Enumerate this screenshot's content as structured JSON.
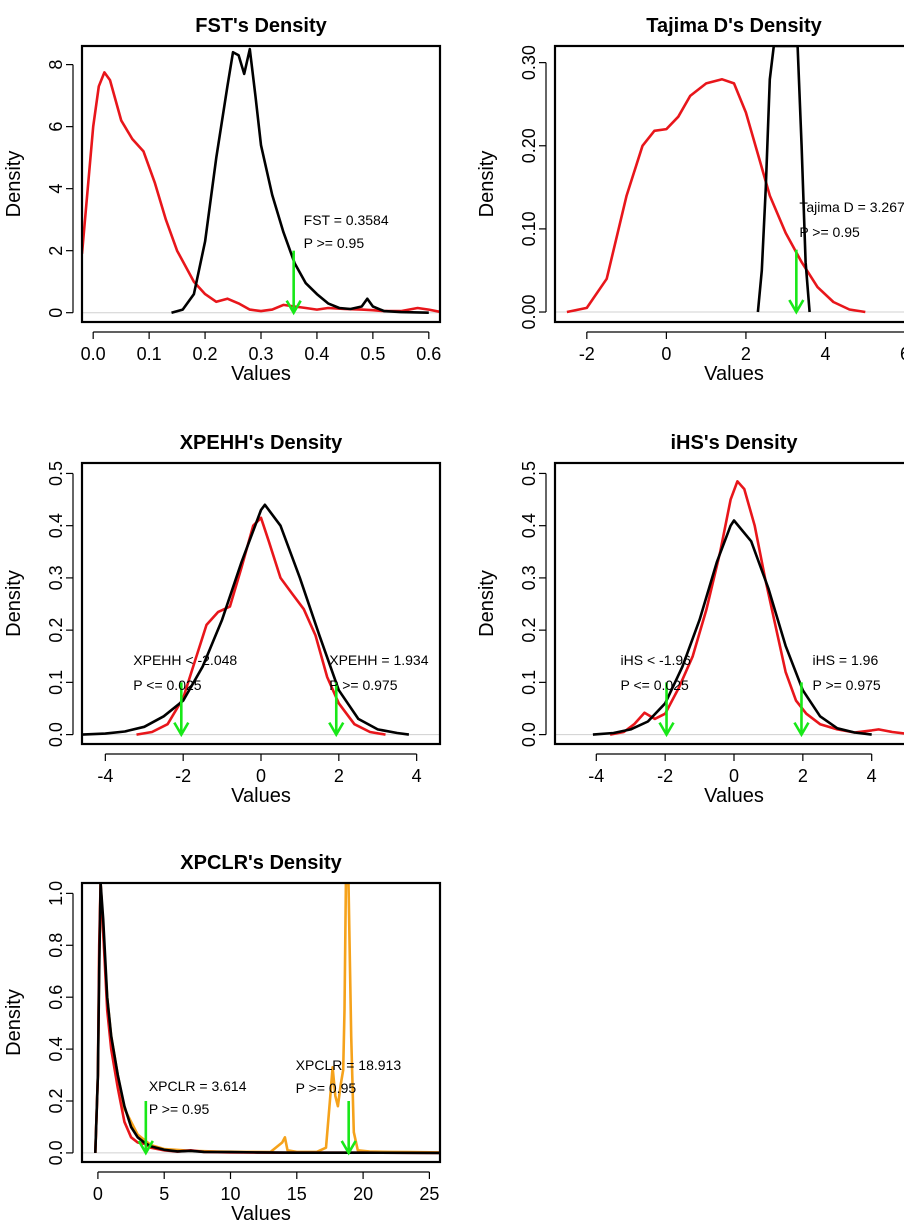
{
  "colors": {
    "red": "#e8161b",
    "black": "#000000",
    "green": "#18e818",
    "orange": "#f5a21b",
    "baseline": "#d0d0d0"
  },
  "chart_data": [
    {
      "id": "fst",
      "type": "line",
      "title": "FST's Density",
      "xlabel": "Values",
      "ylabel": "Density",
      "xlim": [
        -0.02,
        0.62
      ],
      "ylim": [
        -0.3,
        8.6
      ],
      "xticks": [
        0.0,
        0.1,
        0.2,
        0.3,
        0.4,
        0.5,
        0.6
      ],
      "xtick_labels": [
        "0.0",
        "0.1",
        "0.2",
        "0.3",
        "0.4",
        "0.5",
        "0.6"
      ],
      "yticks": [
        0,
        2,
        4,
        6,
        8
      ],
      "ytick_labels": [
        "0",
        "2",
        "4",
        "6",
        "8"
      ],
      "series": [
        {
          "color": "red",
          "x": [
            -0.02,
            0.0,
            0.01,
            0.02,
            0.03,
            0.05,
            0.07,
            0.09,
            0.11,
            0.13,
            0.15,
            0.18,
            0.2,
            0.22,
            0.24,
            0.26,
            0.28,
            0.3,
            0.32,
            0.34,
            0.36,
            0.38,
            0.4,
            0.42,
            0.45,
            0.48,
            0.5,
            0.52,
            0.55,
            0.58,
            0.6,
            0.62
          ],
          "y": [
            1.9,
            6.0,
            7.3,
            7.75,
            7.5,
            6.2,
            5.6,
            5.2,
            4.2,
            3.0,
            2.0,
            1.0,
            0.6,
            0.35,
            0.45,
            0.3,
            0.1,
            0.05,
            0.1,
            0.25,
            0.2,
            0.15,
            0.1,
            0.15,
            0.12,
            0.1,
            0.08,
            0.05,
            0.05,
            0.15,
            0.1,
            0.03
          ]
        },
        {
          "color": "black",
          "x": [
            0.14,
            0.16,
            0.18,
            0.2,
            0.22,
            0.24,
            0.25,
            0.26,
            0.27,
            0.28,
            0.29,
            0.3,
            0.32,
            0.34,
            0.36,
            0.38,
            0.4,
            0.42,
            0.44,
            0.46,
            0.48,
            0.49,
            0.5,
            0.52,
            0.55,
            0.58,
            0.6
          ],
          "y": [
            0.0,
            0.1,
            0.6,
            2.3,
            5.0,
            7.3,
            8.4,
            8.3,
            7.7,
            8.5,
            7.0,
            5.4,
            3.8,
            2.6,
            1.6,
            0.95,
            0.6,
            0.3,
            0.15,
            0.12,
            0.2,
            0.45,
            0.2,
            0.05,
            0.02,
            0.01,
            0.0
          ]
        }
      ],
      "arrows": [
        {
          "x": 0.3584,
          "from": 2.0,
          "to": 0.0
        }
      ],
      "annotations": [
        {
          "x": 0.3584,
          "lines": [
            "FST = 0.3584",
            "P >= 0.95"
          ]
        }
      ]
    },
    {
      "id": "tajima",
      "type": "line",
      "title": "Tajima D's Density",
      "xlabel": "Values",
      "ylabel": "Density",
      "xlim": [
        -2.8,
        6.2
      ],
      "ylim": [
        -0.012,
        0.32
      ],
      "xticks": [
        -2,
        0,
        2,
        4,
        6
      ],
      "xtick_labels": [
        "-2",
        "0",
        "2",
        "4",
        "6"
      ],
      "yticks": [
        0.0,
        0.1,
        0.2,
        0.3
      ],
      "ytick_labels": [
        "0.00",
        "0.10",
        "0.20",
        "0.30"
      ],
      "series": [
        {
          "color": "red",
          "x": [
            -2.5,
            -2.0,
            -1.5,
            -1.0,
            -0.6,
            -0.3,
            0.0,
            0.3,
            0.6,
            1.0,
            1.4,
            1.7,
            2.0,
            2.3,
            2.6,
            3.0,
            3.4,
            3.8,
            4.2,
            4.6,
            5.0
          ],
          "y": [
            0.0,
            0.005,
            0.04,
            0.14,
            0.2,
            0.218,
            0.22,
            0.235,
            0.26,
            0.275,
            0.28,
            0.275,
            0.24,
            0.19,
            0.14,
            0.095,
            0.06,
            0.03,
            0.012,
            0.003,
            0.0
          ]
        },
        {
          "color": "black",
          "x": [
            2.3,
            2.4,
            2.5,
            2.6,
            2.7,
            2.9,
            3.1,
            3.3,
            3.4,
            3.5,
            3.6
          ],
          "y": [
            0.0,
            0.05,
            0.15,
            0.28,
            0.32,
            0.32,
            0.32,
            0.32,
            0.2,
            0.06,
            0.0
          ]
        }
      ],
      "arrows": [
        {
          "x": 3.267,
          "from": 0.075,
          "to": 0.0
        }
      ],
      "annotations": [
        {
          "x": 3.267,
          "lines": [
            "Tajima D = 3.267",
            "P >= 0.95"
          ]
        }
      ]
    },
    {
      "id": "xpehh",
      "type": "line",
      "title": "XPEHH's Density",
      "xlabel": "Values",
      "ylabel": "Density",
      "xlim": [
        -4.6,
        4.6
      ],
      "ylim": [
        -0.018,
        0.52
      ],
      "xticks": [
        -4,
        -2,
        0,
        2,
        4
      ],
      "xtick_labels": [
        "-4",
        "-2",
        "0",
        "2",
        "4"
      ],
      "yticks": [
        0.0,
        0.1,
        0.2,
        0.3,
        0.4,
        0.5
      ],
      "ytick_labels": [
        "0.0",
        "0.1",
        "0.2",
        "0.3",
        "0.4",
        "0.5"
      ],
      "series": [
        {
          "color": "red",
          "x": [
            -3.2,
            -2.8,
            -2.4,
            -2.0,
            -1.7,
            -1.4,
            -1.1,
            -0.8,
            -0.5,
            -0.2,
            0.0,
            0.2,
            0.5,
            0.8,
            1.1,
            1.4,
            1.7,
            2.0,
            2.4,
            2.8,
            3.2
          ],
          "y": [
            0.0,
            0.005,
            0.02,
            0.07,
            0.14,
            0.21,
            0.235,
            0.245,
            0.32,
            0.4,
            0.415,
            0.37,
            0.3,
            0.27,
            0.24,
            0.19,
            0.11,
            0.06,
            0.02,
            0.005,
            0.0
          ]
        },
        {
          "color": "black",
          "x": [
            -4.6,
            -4.0,
            -3.5,
            -3.0,
            -2.5,
            -2.0,
            -1.5,
            -1.0,
            -0.5,
            0.0,
            0.1,
            0.5,
            1.0,
            1.5,
            2.0,
            2.5,
            3.0,
            3.5,
            3.8
          ],
          "y": [
            0.0,
            0.002,
            0.006,
            0.015,
            0.035,
            0.065,
            0.13,
            0.22,
            0.33,
            0.43,
            0.44,
            0.4,
            0.3,
            0.19,
            0.085,
            0.03,
            0.01,
            0.003,
            0.0
          ]
        }
      ],
      "arrows": [
        {
          "x": -2.048,
          "from": 0.1,
          "to": 0.0
        },
        {
          "x": 1.934,
          "from": 0.1,
          "to": 0.0
        }
      ],
      "annotations": [
        {
          "x": -2.048,
          "lines": [
            "XPEHH < -2.048",
            "P <= 0.025"
          ]
        },
        {
          "x": 1.934,
          "lines": [
            "XPEHH = 1.934",
            "P >= 0.975"
          ]
        }
      ]
    },
    {
      "id": "ihs",
      "type": "line",
      "title": "iHS's Density",
      "xlabel": "Values",
      "ylabel": "Density",
      "xlim": [
        -5.2,
        5.2
      ],
      "ylim": [
        -0.018,
        0.52
      ],
      "xticks": [
        -4,
        -2,
        0,
        2,
        4
      ],
      "xtick_labels": [
        "-4",
        "-2",
        "0",
        "2",
        "4"
      ],
      "yticks": [
        0.0,
        0.1,
        0.2,
        0.3,
        0.4,
        0.5
      ],
      "ytick_labels": [
        "0.0",
        "0.1",
        "0.2",
        "0.3",
        "0.4",
        "0.5"
      ],
      "series": [
        {
          "color": "red",
          "x": [
            -3.6,
            -3.2,
            -2.9,
            -2.6,
            -2.3,
            -2.0,
            -1.6,
            -1.2,
            -0.8,
            -0.4,
            -0.1,
            0.1,
            0.3,
            0.6,
            0.9,
            1.2,
            1.5,
            1.8,
            2.1,
            2.5,
            3.0,
            3.5,
            4.0,
            4.2,
            4.6,
            5.2
          ],
          "y": [
            0.0,
            0.005,
            0.02,
            0.042,
            0.03,
            0.04,
            0.09,
            0.15,
            0.24,
            0.35,
            0.45,
            0.485,
            0.47,
            0.4,
            0.3,
            0.21,
            0.12,
            0.065,
            0.04,
            0.02,
            0.01,
            0.004,
            0.008,
            0.01,
            0.005,
            0.0
          ]
        },
        {
          "color": "black",
          "x": [
            -4.1,
            -3.5,
            -3.0,
            -2.5,
            -2.0,
            -1.5,
            -1.0,
            -0.5,
            -0.1,
            0.0,
            0.5,
            1.0,
            1.5,
            2.0,
            2.5,
            3.0,
            3.5,
            4.0
          ],
          "y": [
            0.0,
            0.003,
            0.01,
            0.025,
            0.06,
            0.13,
            0.22,
            0.33,
            0.4,
            0.41,
            0.37,
            0.28,
            0.17,
            0.085,
            0.035,
            0.012,
            0.004,
            0.0
          ]
        }
      ],
      "arrows": [
        {
          "x": -1.96,
          "from": 0.1,
          "to": 0.0
        },
        {
          "x": 1.96,
          "from": 0.1,
          "to": 0.0
        }
      ],
      "annotations": [
        {
          "x": -1.96,
          "lines": [
            "iHS < -1.96",
            "P <= 0.025"
          ]
        },
        {
          "x": 1.96,
          "lines": [
            "iHS = 1.96",
            "P >= 0.975"
          ]
        }
      ]
    },
    {
      "id": "xpclr",
      "type": "line",
      "title": "XPCLR's Density",
      "xlabel": "Values",
      "ylabel": "Density",
      "xlim": [
        -1.2,
        25.8
      ],
      "ylim": [
        -0.035,
        1.04
      ],
      "xticks": [
        0,
        5,
        10,
        15,
        20,
        25
      ],
      "xtick_labels": [
        "0",
        "5",
        "10",
        "15",
        "20",
        "25"
      ],
      "yticks": [
        0.0,
        0.2,
        0.4,
        0.6,
        0.8,
        1.0
      ],
      "ytick_labels": [
        "0.0",
        "0.2",
        "0.4",
        "0.6",
        "0.8",
        "1.0"
      ],
      "series": [
        {
          "color": "orange",
          "x": [
            -0.2,
            0.0,
            0.1,
            0.2,
            0.4,
            0.7,
            1.0,
            1.5,
            2.0,
            3.0,
            4.0,
            5.0,
            7.0,
            9.0,
            11.0,
            13.0,
            13.9,
            14.1,
            14.3,
            15.0,
            16.5,
            17.2,
            17.5,
            17.7,
            17.9,
            18.1,
            18.3,
            18.5,
            18.6,
            18.7,
            18.9,
            19.1,
            19.3,
            19.6,
            20.5,
            22.0,
            23.5,
            25.8
          ],
          "y": [
            0.0,
            0.3,
            0.75,
            1.04,
            0.85,
            0.6,
            0.45,
            0.3,
            0.17,
            0.07,
            0.03,
            0.015,
            0.008,
            0.005,
            0.004,
            0.003,
            0.04,
            0.06,
            0.01,
            0.004,
            0.004,
            0.02,
            0.2,
            0.33,
            0.22,
            0.18,
            0.26,
            0.32,
            0.55,
            1.04,
            1.04,
            0.45,
            0.08,
            0.01,
            0.005,
            0.004,
            0.003,
            0.002
          ]
        },
        {
          "color": "red",
          "x": [
            -0.2,
            0.0,
            0.1,
            0.2,
            0.4,
            0.7,
            1.0,
            1.5,
            2.0,
            2.5,
            3.0,
            3.5,
            4.0,
            5.0,
            6.0,
            7.0,
            8.0,
            10.0,
            14.0,
            20.0,
            25.8
          ],
          "y": [
            0.0,
            0.3,
            0.8,
            1.04,
            0.85,
            0.55,
            0.4,
            0.25,
            0.12,
            0.06,
            0.04,
            0.035,
            0.02,
            0.01,
            0.005,
            0.01,
            0.004,
            0.002,
            0.001,
            0.001,
            0.0
          ]
        },
        {
          "color": "black",
          "x": [
            -0.2,
            0.0,
            0.1,
            0.2,
            0.4,
            0.7,
            1.0,
            1.5,
            2.0,
            2.5,
            3.0,
            3.5,
            4.0,
            5.0,
            6.0,
            7.0,
            8.0,
            10.0,
            12.0,
            15.0,
            20.0,
            25.8
          ],
          "y": [
            0.0,
            0.3,
            0.7,
            1.04,
            0.9,
            0.6,
            0.45,
            0.3,
            0.18,
            0.1,
            0.06,
            0.04,
            0.025,
            0.012,
            0.006,
            0.008,
            0.004,
            0.003,
            0.002,
            0.001,
            0.001,
            0.0
          ]
        }
      ],
      "arrows": [
        {
          "x": 3.614,
          "from": 0.2,
          "to": 0.0
        },
        {
          "x": 18.913,
          "from": 0.2,
          "to": 0.0
        }
      ],
      "annotations": [
        {
          "x": 3.614,
          "lines": [
            "XPCLR = 3.614",
            "P >= 0.95"
          ]
        },
        {
          "x": 18.913,
          "lines": [
            "XPCLR = 18.913",
            "P >= 0.95"
          ]
        }
      ]
    }
  ]
}
